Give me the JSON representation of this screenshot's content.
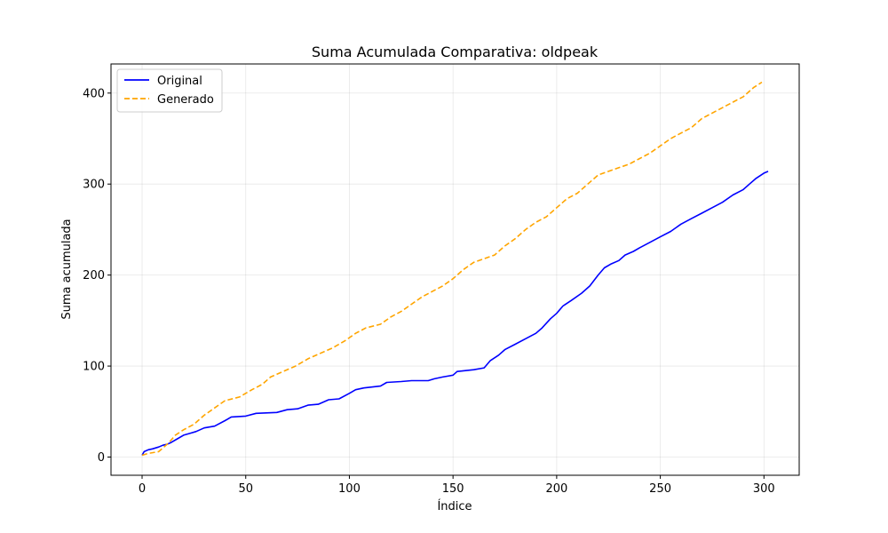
{
  "chart_data": {
    "type": "line",
    "title": "Suma Acumulada Comparativa: oldpeak",
    "xlabel": "Índice",
    "ylabel": "Suma acumulada",
    "xlim": [
      -15,
      317
    ],
    "ylim": [
      -20,
      432
    ],
    "xticks": [
      0,
      50,
      100,
      150,
      200,
      250,
      300
    ],
    "yticks": [
      0,
      100,
      200,
      300,
      400
    ],
    "grid": true,
    "legend_position": "top-left",
    "series": [
      {
        "name": "Original",
        "color": "#0000ff",
        "style": "solid",
        "points": [
          [
            0,
            2
          ],
          [
            1,
            6
          ],
          [
            3,
            8
          ],
          [
            5,
            9
          ],
          [
            8,
            11
          ],
          [
            10,
            13
          ],
          [
            12,
            14
          ],
          [
            14,
            16
          ],
          [
            17,
            20
          ],
          [
            20,
            24
          ],
          [
            23,
            26
          ],
          [
            26,
            28
          ],
          [
            30,
            32
          ],
          [
            35,
            34
          ],
          [
            40,
            40
          ],
          [
            43,
            44
          ],
          [
            50,
            45
          ],
          [
            55,
            48
          ],
          [
            65,
            49
          ],
          [
            70,
            52
          ],
          [
            75,
            53
          ],
          [
            80,
            57
          ],
          [
            85,
            58
          ],
          [
            90,
            63
          ],
          [
            95,
            64
          ],
          [
            100,
            70
          ],
          [
            103,
            74
          ],
          [
            107,
            76
          ],
          [
            115,
            78
          ],
          [
            118,
            82
          ],
          [
            125,
            83
          ],
          [
            130,
            84
          ],
          [
            138,
            84
          ],
          [
            141,
            86
          ],
          [
            145,
            88
          ],
          [
            150,
            90
          ],
          [
            152,
            94
          ],
          [
            160,
            96
          ],
          [
            165,
            98
          ],
          [
            168,
            106
          ],
          [
            172,
            112
          ],
          [
            175,
            118
          ],
          [
            180,
            124
          ],
          [
            185,
            130
          ],
          [
            190,
            136
          ],
          [
            193,
            142
          ],
          [
            197,
            152
          ],
          [
            200,
            158
          ],
          [
            203,
            166
          ],
          [
            207,
            172
          ],
          [
            212,
            180
          ],
          [
            216,
            188
          ],
          [
            220,
            200
          ],
          [
            223,
            208
          ],
          [
            226,
            212
          ],
          [
            230,
            216
          ],
          [
            233,
            222
          ],
          [
            237,
            226
          ],
          [
            240,
            230
          ],
          [
            245,
            236
          ],
          [
            250,
            242
          ],
          [
            255,
            248
          ],
          [
            260,
            256
          ],
          [
            265,
            262
          ],
          [
            270,
            268
          ],
          [
            275,
            274
          ],
          [
            280,
            280
          ],
          [
            285,
            288
          ],
          [
            290,
            294
          ],
          [
            293,
            300
          ],
          [
            296,
            306
          ],
          [
            300,
            312
          ],
          [
            302,
            314
          ]
        ]
      },
      {
        "name": "Generado",
        "color": "#ffa500",
        "style": "dashed",
        "points": [
          [
            0,
            2
          ],
          [
            3,
            4
          ],
          [
            8,
            6
          ],
          [
            10,
            10
          ],
          [
            13,
            16
          ],
          [
            16,
            24
          ],
          [
            20,
            30
          ],
          [
            25,
            36
          ],
          [
            30,
            46
          ],
          [
            35,
            54
          ],
          [
            40,
            62
          ],
          [
            47,
            66
          ],
          [
            53,
            74
          ],
          [
            58,
            80
          ],
          [
            62,
            88
          ],
          [
            68,
            94
          ],
          [
            74,
            100
          ],
          [
            80,
            108
          ],
          [
            86,
            114
          ],
          [
            92,
            120
          ],
          [
            98,
            128
          ],
          [
            103,
            136
          ],
          [
            108,
            142
          ],
          [
            115,
            146
          ],
          [
            120,
            154
          ],
          [
            125,
            160
          ],
          [
            130,
            168
          ],
          [
            135,
            176
          ],
          [
            140,
            182
          ],
          [
            145,
            188
          ],
          [
            150,
            196
          ],
          [
            155,
            206
          ],
          [
            160,
            214
          ],
          [
            165,
            218
          ],
          [
            170,
            222
          ],
          [
            175,
            232
          ],
          [
            180,
            240
          ],
          [
            185,
            250
          ],
          [
            190,
            258
          ],
          [
            195,
            264
          ],
          [
            200,
            274
          ],
          [
            205,
            284
          ],
          [
            210,
            290
          ],
          [
            215,
            300
          ],
          [
            220,
            310
          ],
          [
            225,
            314
          ],
          [
            230,
            318
          ],
          [
            235,
            322
          ],
          [
            240,
            328
          ],
          [
            245,
            334
          ],
          [
            250,
            342
          ],
          [
            255,
            350
          ],
          [
            260,
            356
          ],
          [
            265,
            362
          ],
          [
            270,
            372
          ],
          [
            275,
            378
          ],
          [
            280,
            384
          ],
          [
            285,
            390
          ],
          [
            290,
            396
          ],
          [
            295,
            406
          ],
          [
            299,
            412
          ]
        ]
      }
    ]
  }
}
